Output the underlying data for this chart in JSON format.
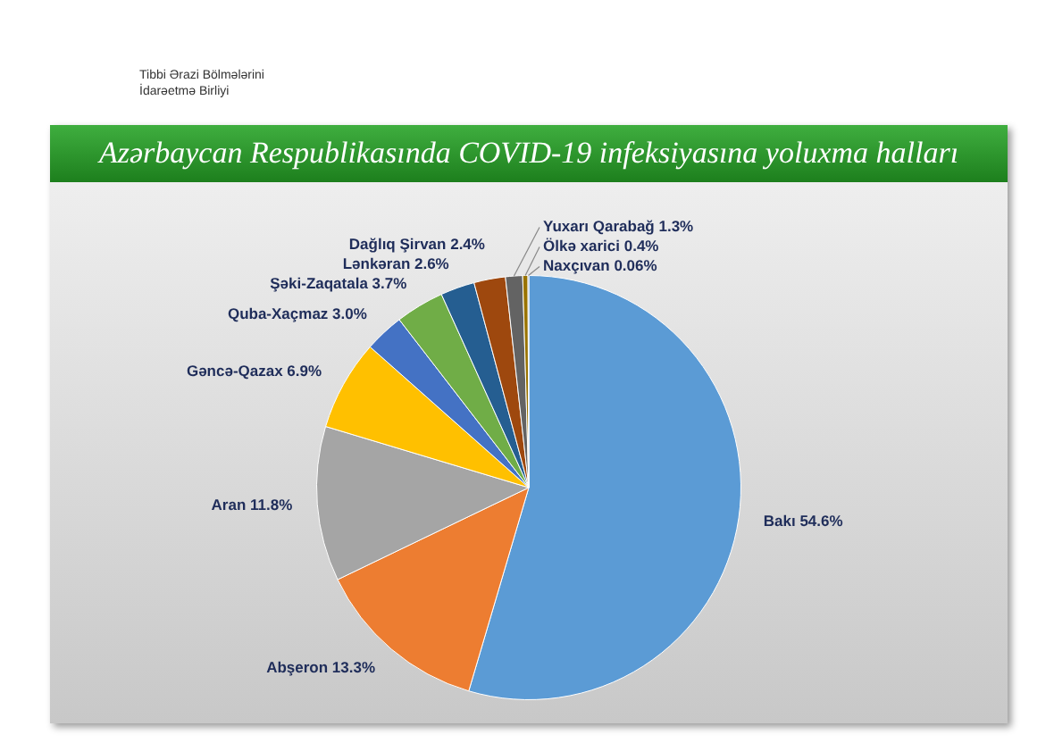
{
  "chart_data": {
    "type": "pie",
    "title": "Azərbaycan Respublikasında COVID-19 infeksiyasına yoluxma halları",
    "annotations": [
      "Tibbi Ərazi Bölmələrini İdarəetmə Birliyi"
    ],
    "categories": [
      "Bakı",
      "Abşeron",
      "Aran",
      "Gəncə-Qazax",
      "Quba-Xaçmaz",
      "Şəki-Zaqatala",
      "Lənkəran",
      "Dağlıq Şirvan",
      "Yuxarı Qarabağ",
      "Ölkə xarici",
      "Naxçıvan"
    ],
    "values": [
      54.6,
      13.3,
      11.8,
      6.9,
      3.0,
      3.7,
      2.6,
      2.4,
      1.3,
      0.4,
      0.06
    ],
    "value_labels": [
      "54.6%",
      "13.3%",
      "11.8%",
      "6.9%",
      "3.0%",
      "3.7%",
      "2.6%",
      "2.4%",
      "1.3%",
      "0.4%",
      "0.06%"
    ],
    "colors": [
      "#5b9bd5",
      "#ed7d31",
      "#a5a5a5",
      "#ffc000",
      "#4472c4",
      "#70ad47",
      "#255e91",
      "#9e480e",
      "#636363",
      "#997300",
      "#264478"
    ],
    "legend": false
  }
}
